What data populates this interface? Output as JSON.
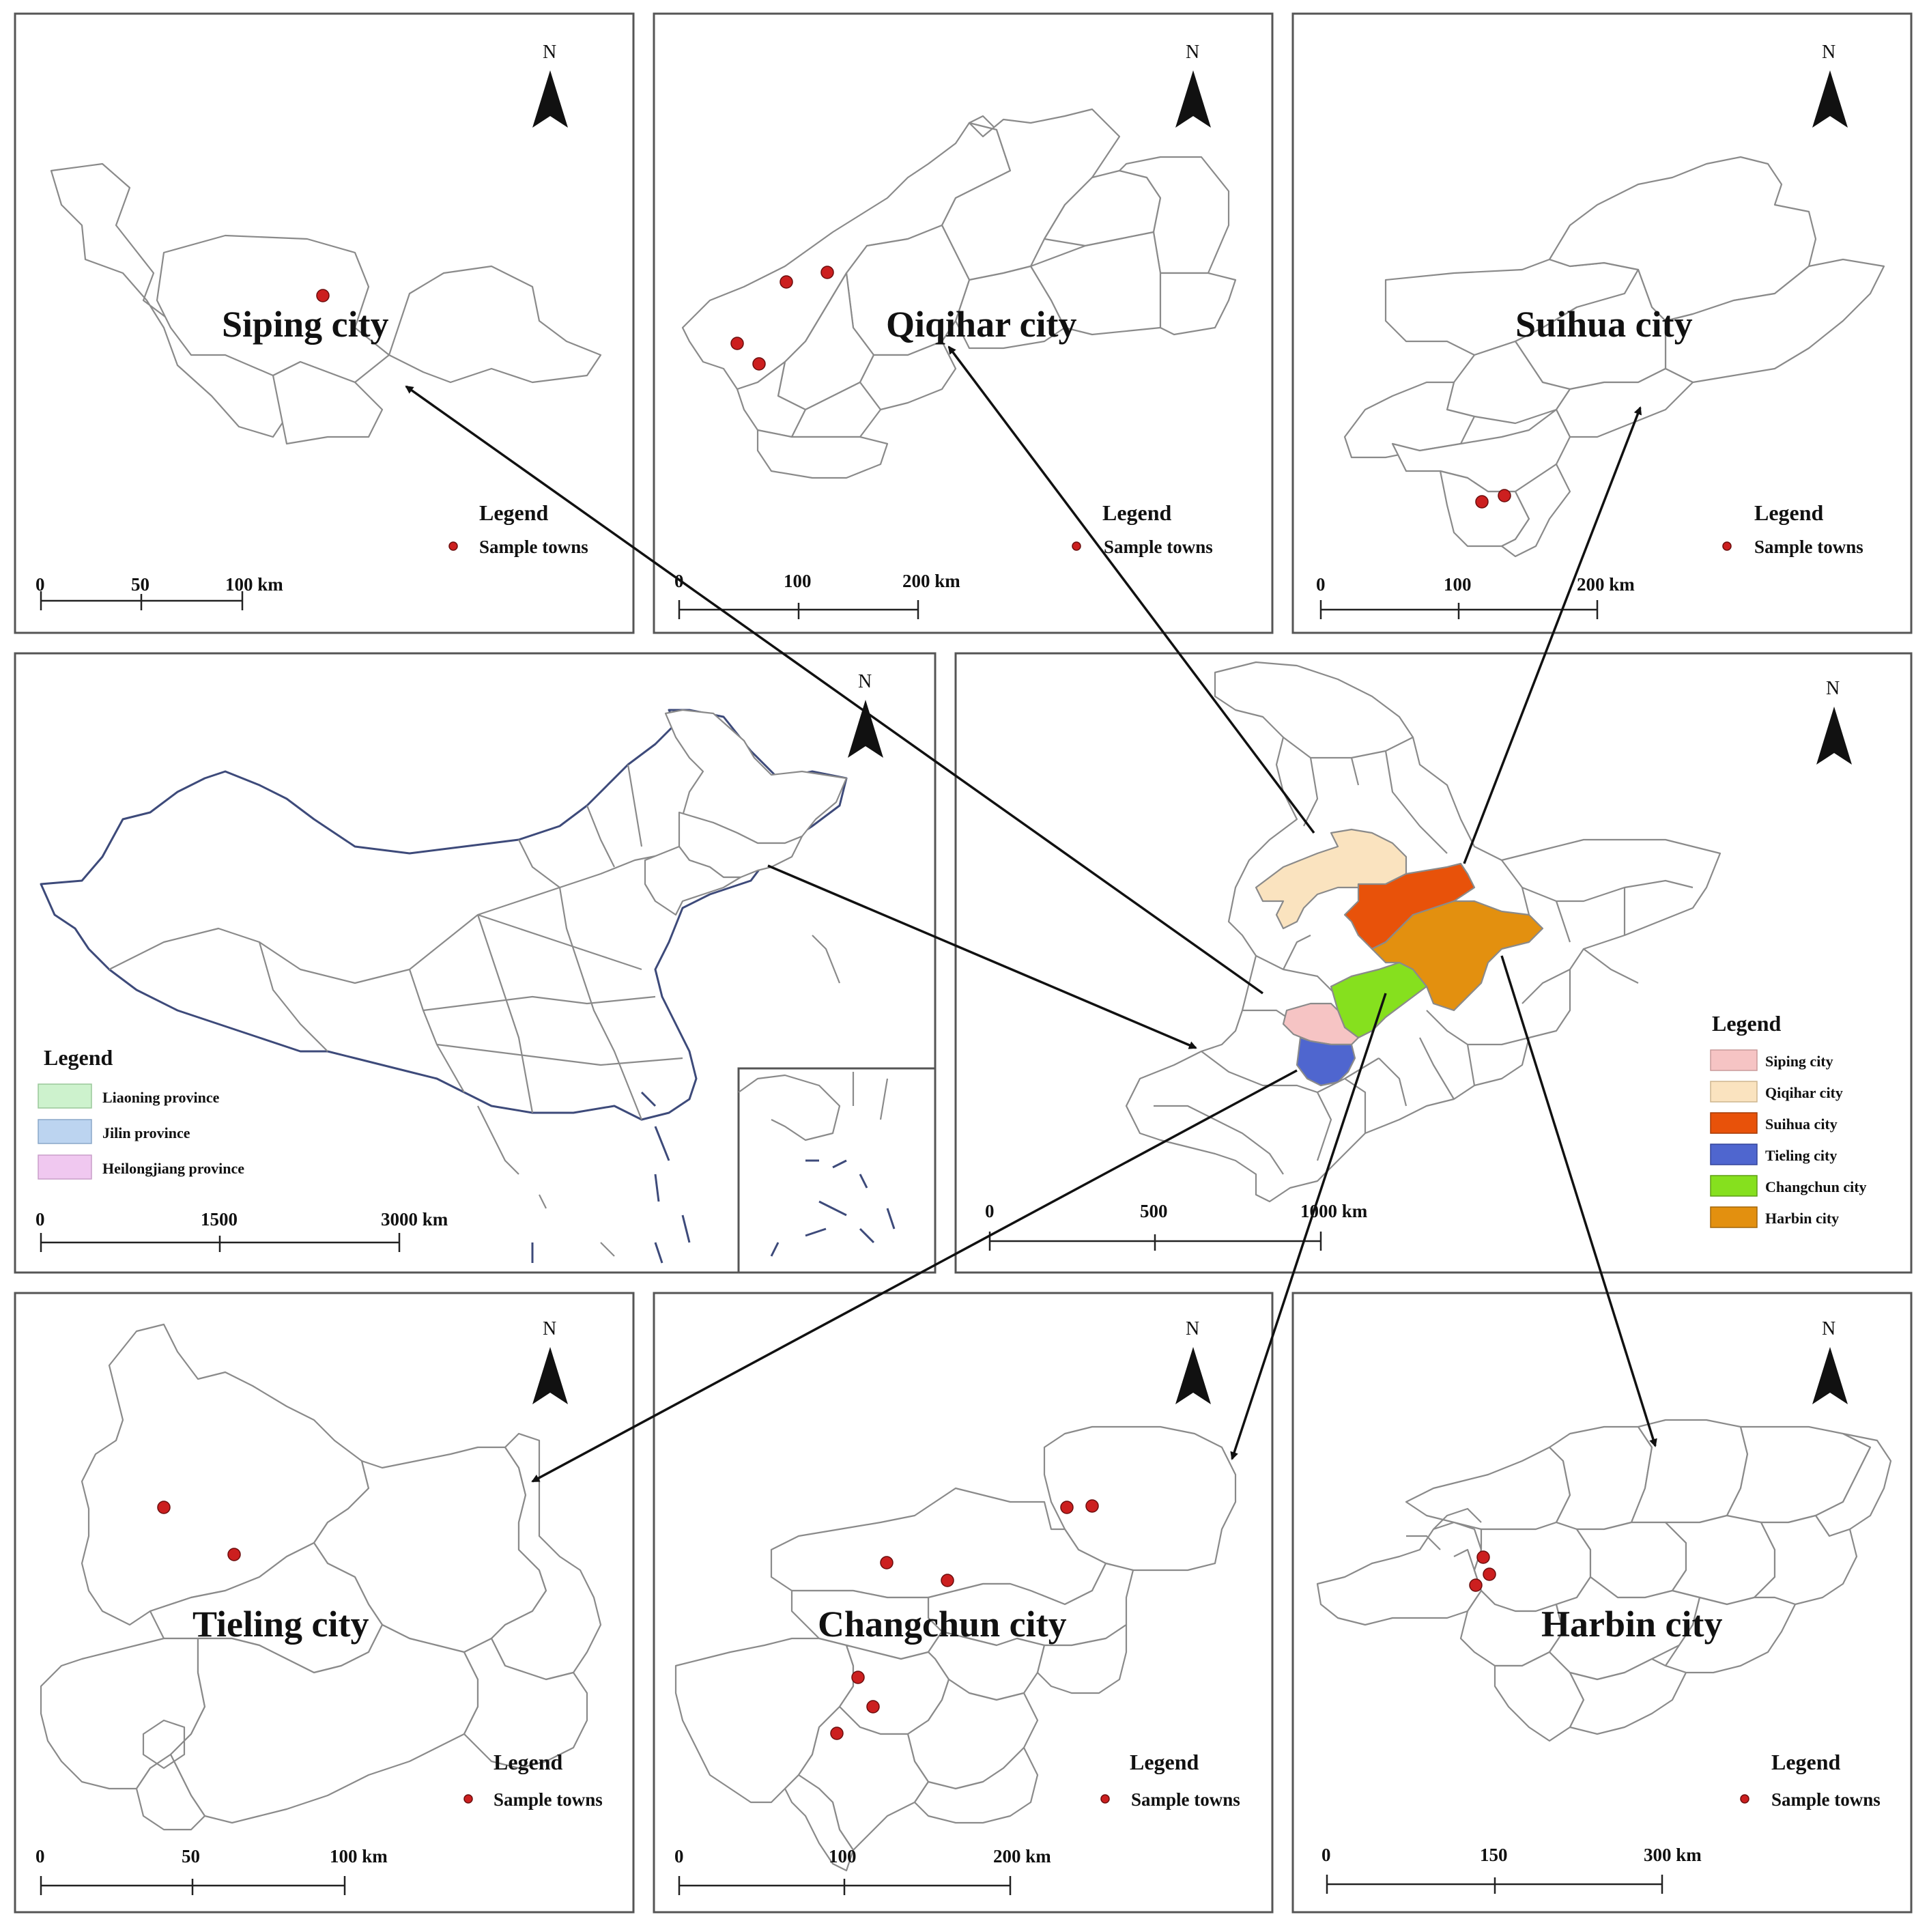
{
  "north_label": "N",
  "colors": {
    "siping": "#f6c4c4",
    "qiqihar": "#fae3bf",
    "suihua": "#e8520a",
    "tieling": "#4f66cf",
    "changchun": "#86e01e",
    "harbin": "#e3900f",
    "liaoning": "#cdf2cd",
    "jilin": "#bcd4f0",
    "heilongjiang": "#f0c8f0",
    "sample_dot": "#cc1f1f"
  },
  "panels": {
    "siping": {
      "title": "Siping city",
      "legend_title": "Legend",
      "legend_item": "Sample towns",
      "scale": [
        "0",
        "50",
        "100 km"
      ]
    },
    "qiqihar": {
      "title": "Qiqihar city",
      "legend_title": "Legend",
      "legend_item": "Sample towns",
      "scale": [
        "0",
        "100",
        "200 km"
      ]
    },
    "suihua": {
      "title": "Suihua city",
      "legend_title": "Legend",
      "legend_item": "Sample towns",
      "scale": [
        "0",
        "100",
        "200 km"
      ]
    },
    "china": {
      "legend_title": "Legend",
      "legend_items": [
        "Liaoning province",
        "Jilin province",
        "Heilongjiang province"
      ],
      "scale": [
        "0",
        "1500",
        "3000 km"
      ]
    },
    "northeast": {
      "legend_title": "Legend",
      "legend_items": [
        "Siping city",
        "Qiqihar city",
        "Suihua city",
        "Tieling city",
        "Changchun city",
        "Harbin city"
      ],
      "scale": [
        "0",
        "500",
        "1000 km"
      ]
    },
    "tieling": {
      "title": "Tieling city",
      "legend_title": "Legend",
      "legend_item": "Sample towns",
      "scale": [
        "0",
        "50",
        "100 km"
      ]
    },
    "changchun": {
      "title": "Changchun city",
      "legend_title": "Legend",
      "legend_item": "Sample towns",
      "scale": [
        "0",
        "100",
        "200 km"
      ]
    },
    "harbin": {
      "title": "Harbin city",
      "legend_title": "Legend",
      "legend_item": "Sample towns",
      "scale": [
        "0",
        "150",
        "300 km"
      ]
    }
  }
}
